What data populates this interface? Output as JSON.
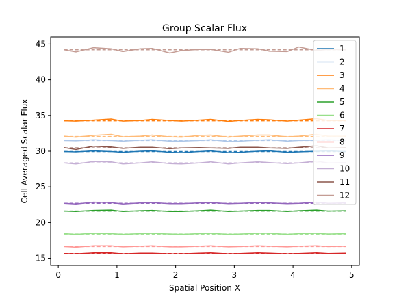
{
  "chart_data": {
    "type": "line",
    "title": "Group Scalar Flux",
    "xlabel": "Spatial Position X",
    "ylabel": "Cell Averaged Scalar Flux",
    "xlim": [
      -0.13,
      5.13
    ],
    "ylim": [
      14.0,
      46.0
    ],
    "xticks": [
      0,
      1,
      2,
      3,
      4,
      5
    ],
    "yticks": [
      15,
      20,
      25,
      30,
      35,
      40,
      45
    ],
    "grid": false,
    "legend_position": "top-right",
    "reference_style": "dashed",
    "x": [
      0.1,
      0.3,
      0.6,
      0.9,
      1.1,
      1.4,
      1.6,
      1.9,
      2.1,
      2.4,
      2.6,
      2.9,
      3.1,
      3.4,
      3.6,
      3.9,
      4.1,
      4.4,
      4.6,
      4.9
    ],
    "series": [
      {
        "name": "1",
        "color": "#1f77b4",
        "reference": 29.95,
        "values": [
          29.95,
          29.9,
          30.05,
          29.95,
          29.85,
          30.0,
          30.05,
          29.85,
          29.8,
          29.95,
          30.05,
          29.8,
          29.85,
          30.0,
          30.05,
          29.85,
          29.9,
          30.0,
          30.05,
          29.95
        ]
      },
      {
        "name": "2",
        "color": "#aec7e8",
        "reference": 31.5,
        "values": [
          31.5,
          31.45,
          31.6,
          31.5,
          31.4,
          31.55,
          31.6,
          31.4,
          31.4,
          31.5,
          31.6,
          31.35,
          31.4,
          31.55,
          31.6,
          31.4,
          31.5,
          31.55,
          31.6,
          31.5
        ]
      },
      {
        "name": "3",
        "color": "#ff7f0e",
        "reference": 34.25,
        "values": [
          34.25,
          34.2,
          34.35,
          34.5,
          34.2,
          34.3,
          34.45,
          34.3,
          34.2,
          34.35,
          34.45,
          34.15,
          34.3,
          34.45,
          34.4,
          34.2,
          34.35,
          34.55,
          34.3,
          34.3
        ]
      },
      {
        "name": "4",
        "color": "#ffbb78",
        "reference": 32.05,
        "values": [
          32.1,
          31.95,
          32.2,
          32.35,
          32.0,
          32.1,
          32.25,
          32.0,
          31.95,
          32.2,
          32.25,
          31.95,
          32.1,
          32.25,
          32.25,
          32.0,
          32.1,
          32.35,
          32.1,
          32.1
        ]
      },
      {
        "name": "5",
        "color": "#2ca02c",
        "reference": 21.6,
        "values": [
          21.6,
          21.55,
          21.7,
          21.75,
          21.55,
          21.65,
          21.7,
          21.55,
          21.55,
          21.65,
          21.75,
          21.55,
          21.6,
          21.7,
          21.7,
          21.55,
          21.65,
          21.75,
          21.6,
          21.65
        ]
      },
      {
        "name": "6",
        "color": "#98df8a",
        "reference": 18.4,
        "values": [
          18.45,
          18.35,
          18.5,
          18.45,
          18.35,
          18.45,
          18.5,
          18.4,
          18.35,
          18.45,
          18.5,
          18.35,
          18.4,
          18.5,
          18.5,
          18.35,
          18.45,
          18.5,
          18.4,
          18.45
        ]
      },
      {
        "name": "7",
        "color": "#d62728",
        "reference": 15.65,
        "values": [
          15.65,
          15.6,
          15.75,
          15.75,
          15.6,
          15.7,
          15.7,
          15.6,
          15.6,
          15.7,
          15.75,
          15.6,
          15.65,
          15.75,
          15.7,
          15.6,
          15.65,
          15.75,
          15.65,
          15.7
        ]
      },
      {
        "name": "8",
        "color": "#ff9896",
        "reference": 16.65,
        "values": [
          16.65,
          16.55,
          16.75,
          16.75,
          16.6,
          16.7,
          16.75,
          16.6,
          16.6,
          16.7,
          16.75,
          16.6,
          16.65,
          16.75,
          16.7,
          16.6,
          16.7,
          16.75,
          16.65,
          16.7
        ]
      },
      {
        "name": "9",
        "color": "#9467bd",
        "reference": 22.7,
        "values": [
          22.7,
          22.6,
          22.85,
          22.8,
          22.6,
          22.75,
          22.8,
          22.65,
          22.65,
          22.75,
          22.8,
          22.65,
          22.7,
          22.8,
          22.75,
          22.65,
          22.7,
          22.85,
          22.7,
          22.75
        ]
      },
      {
        "name": "10",
        "color": "#c5b0d5",
        "reference": 28.35,
        "values": [
          28.35,
          28.2,
          28.55,
          28.5,
          28.2,
          28.35,
          28.5,
          28.25,
          28.2,
          28.35,
          28.5,
          28.2,
          28.35,
          28.5,
          28.4,
          28.25,
          28.35,
          28.6,
          28.35,
          28.4
        ]
      },
      {
        "name": "11",
        "color": "#8c564b",
        "reference": 30.45,
        "values": [
          30.5,
          30.25,
          30.7,
          30.6,
          30.4,
          30.55,
          30.55,
          30.35,
          30.45,
          30.5,
          30.45,
          30.4,
          30.55,
          30.55,
          30.45,
          30.4,
          30.55,
          30.75,
          30.45,
          30.5
        ]
      },
      {
        "name": "12",
        "color": "#c49c94",
        "reference": 44.2,
        "values": [
          44.2,
          43.9,
          44.5,
          44.35,
          43.95,
          44.35,
          44.4,
          43.75,
          44.1,
          44.25,
          44.25,
          43.85,
          44.4,
          44.35,
          44.0,
          43.95,
          44.6,
          44.1,
          44.25,
          44.2
        ]
      }
    ]
  }
}
